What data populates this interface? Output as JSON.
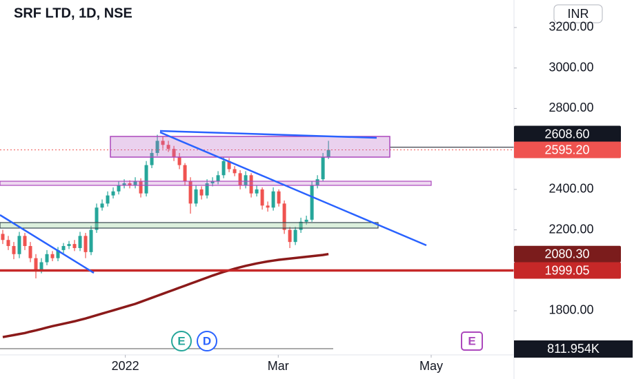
{
  "chart_data": {
    "type": "candlestick",
    "title": "SRF LTD, 1D, NSE",
    "currency": "INR",
    "up_color": "#26a69a",
    "down_color": "#ef5350",
    "ohlc": {
      "open": [
        2180,
        2150,
        2120,
        2080,
        2170,
        2120,
        2060,
        2000,
        2040,
        2080,
        2060,
        2100,
        2120,
        2130,
        2110,
        2170,
        2090,
        2200,
        2310,
        2330,
        2370,
        2390,
        2420,
        2430,
        2420,
        2440,
        2380,
        2520,
        2580,
        2640,
        2620,
        2600,
        2560,
        2520,
        2440,
        2330,
        2400,
        2370,
        2430,
        2440,
        2470,
        2540,
        2500,
        2480,
        2420,
        2470,
        2380,
        2400,
        2320,
        2310,
        2390,
        2330,
        2200,
        2140,
        2200,
        2240,
        2250,
        2420,
        2450,
        2560
      ],
      "high": [
        2200,
        2170,
        2140,
        2190,
        2185,
        2140,
        2080,
        2060,
        2100,
        2095,
        2115,
        2135,
        2145,
        2150,
        2190,
        2185,
        2220,
        2330,
        2350,
        2390,
        2410,
        2440,
        2450,
        2445,
        2460,
        2455,
        2540,
        2600,
        2670,
        2660,
        2640,
        2615,
        2580,
        2530,
        2460,
        2420,
        2415,
        2450,
        2460,
        2490,
        2560,
        2555,
        2515,
        2495,
        2490,
        2480,
        2420,
        2410,
        2340,
        2410,
        2400,
        2345,
        2215,
        2215,
        2260,
        2270,
        2440,
        2470,
        2580,
        2640
      ],
      "low": [
        2130,
        2100,
        2055,
        2060,
        2100,
        2040,
        1960,
        1985,
        2025,
        2045,
        2045,
        2085,
        2105,
        2095,
        2095,
        2060,
        2075,
        2185,
        2295,
        2315,
        2355,
        2375,
        2405,
        2405,
        2405,
        2360,
        2365,
        2505,
        2565,
        2600,
        2585,
        2540,
        2500,
        2420,
        2280,
        2315,
        2350,
        2355,
        2415,
        2425,
        2455,
        2485,
        2465,
        2400,
        2405,
        2360,
        2365,
        2300,
        2290,
        2295,
        2315,
        2180,
        2110,
        2125,
        2185,
        2225,
        2240,
        2405,
        2440,
        2550
      ],
      "close": [
        2150,
        2120,
        2080,
        2170,
        2120,
        2060,
        2000,
        2040,
        2080,
        2060,
        2100,
        2120,
        2130,
        2110,
        2170,
        2090,
        2200,
        2310,
        2330,
        2370,
        2390,
        2420,
        2430,
        2420,
        2440,
        2380,
        2520,
        2580,
        2640,
        2620,
        2600,
        2560,
        2520,
        2440,
        2330,
        2400,
        2370,
        2430,
        2440,
        2470,
        2540,
        2500,
        2480,
        2420,
        2470,
        2380,
        2400,
        2320,
        2310,
        2390,
        2330,
        2200,
        2140,
        2200,
        2240,
        2250,
        2420,
        2450,
        2560,
        2595.2
      ]
    },
    "moving_average": {
      "color": "#8b1a1a",
      "values": [
        1670,
        1675,
        1680,
        1685,
        1690,
        1697,
        1703,
        1710,
        1717,
        1724,
        1730,
        1736,
        1742,
        1748,
        1755,
        1762,
        1770,
        1778,
        1786,
        1794,
        1802,
        1810,
        1818,
        1826,
        1834,
        1844,
        1854,
        1864,
        1874,
        1884,
        1894,
        1904,
        1914,
        1924,
        1934,
        1944,
        1954,
        1964,
        1974,
        1983,
        1992,
        2000,
        2008,
        2015,
        2022,
        2028,
        2034,
        2039,
        2044,
        2048,
        2052,
        2055,
        2058,
        2061,
        2064,
        2067,
        2070,
        2073,
        2076,
        2080.3
      ]
    },
    "xlim": [
      -0.5,
      92.6
    ],
    "xticks": [
      {
        "value": 22.2,
        "label": "2022"
      },
      {
        "value": 49.9,
        "label": "Mar"
      },
      {
        "value": 77.6,
        "label": "May"
      }
    ],
    "ylim": [
      1582,
      3336
    ],
    "yticks": [
      {
        "value": 1800,
        "label": "1800.00"
      },
      {
        "value": 2200,
        "label": "2200.00"
      },
      {
        "value": 2400,
        "label": "2400.00"
      },
      {
        "value": 2800,
        "label": "2800.00"
      },
      {
        "value": 3000,
        "label": "3000.00"
      },
      {
        "value": 3200,
        "label": "3200.00"
      }
    ],
    "price_labels": [
      {
        "value": 2608.6,
        "label": "2608.60",
        "color": "#131722",
        "line": "solid"
      },
      {
        "value": 2595.2,
        "label": "2595.20",
        "color": "#ef5350",
        "line": "dotted"
      },
      {
        "value": 2080.3,
        "label": "2080.30",
        "color": "#7b1c1c",
        "line": "none"
      },
      {
        "value": 1999.05,
        "label": "1999.05",
        "color": "#c62828",
        "line": "thick"
      }
    ],
    "volume_label": "811.954K",
    "events": [
      "E",
      "D",
      "E"
    ]
  }
}
